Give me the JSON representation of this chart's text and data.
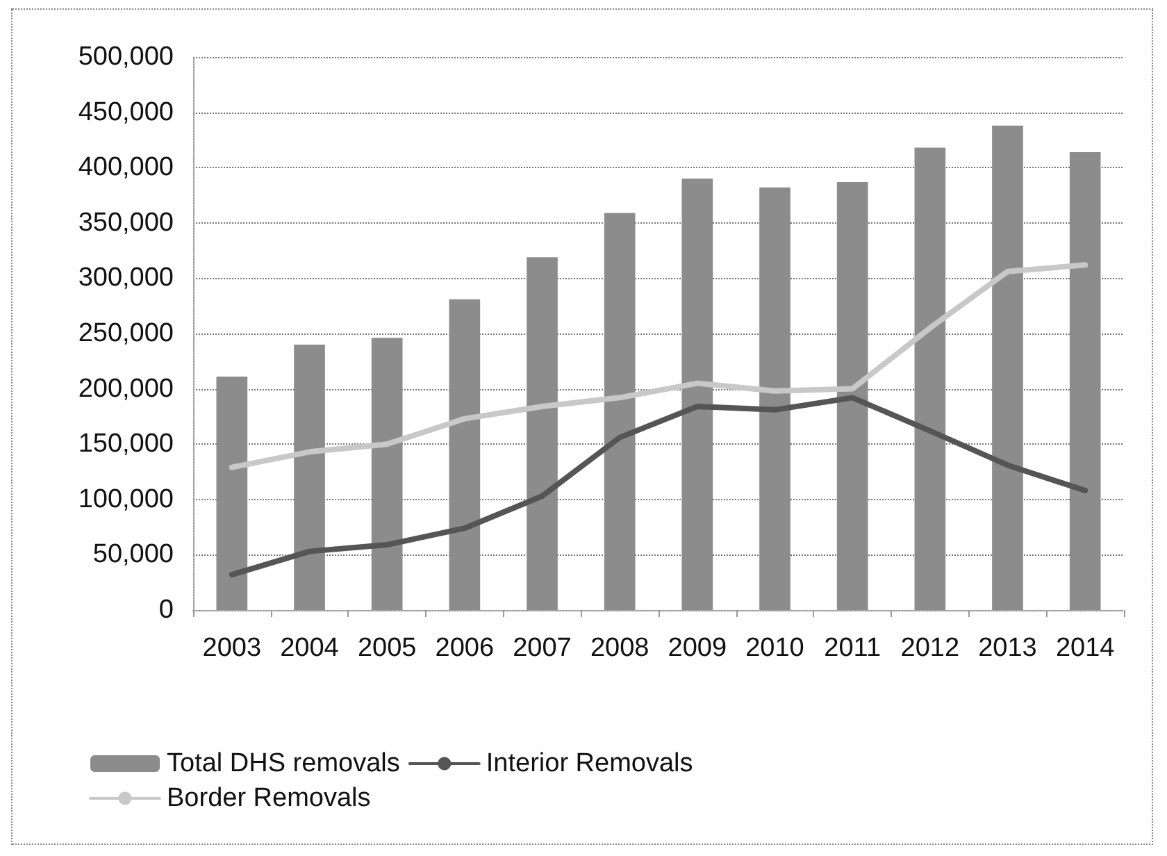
{
  "chart_data": {
    "type": "bar",
    "categories": [
      "2003",
      "2004",
      "2005",
      "2006",
      "2007",
      "2008",
      "2009",
      "2010",
      "2011",
      "2012",
      "2013",
      "2014"
    ],
    "series": [
      {
        "name": "Total DHS removals",
        "color": "#8c8c8c",
        "values": [
          211000,
          240000,
          246000,
          281000,
          319000,
          359000,
          390000,
          382000,
          387000,
          418000,
          438000,
          414000
        ]
      },
      {
        "name": "Interior Removals",
        "type": "line",
        "color": "#555555",
        "values": [
          32000,
          53000,
          59000,
          74000,
          103000,
          156000,
          184000,
          181000,
          192000,
          162000,
          131000,
          108000
        ]
      },
      {
        "name": "Border Removals",
        "type": "line",
        "color": "#c8c8c8",
        "values": [
          129000,
          143000,
          150000,
          173000,
          184000,
          192000,
          205000,
          198000,
          200000,
          255000,
          306000,
          312000
        ]
      }
    ],
    "ylim": [
      0,
      500000
    ],
    "yticks": [
      0,
      {
        "value": 50000,
        "label": "50,000"
      },
      {
        "value": 100000,
        "label": "100,000"
      },
      {
        "value": 150000,
        "label": "150,000"
      },
      {
        "value": 200000,
        "label": "200,000"
      },
      {
        "value": 250000,
        "label": "250,000"
      },
      {
        "value": 300000,
        "label": "300,000"
      },
      {
        "value": 350000,
        "label": "350,000"
      },
      {
        "value": 400000,
        "label": "400,000"
      },
      {
        "value": 450000,
        "label": "450,000"
      },
      {
        "value": 500000,
        "label": "500,000"
      }
    ],
    "grid": "y",
    "legend": "bottom",
    "marker": "none"
  }
}
